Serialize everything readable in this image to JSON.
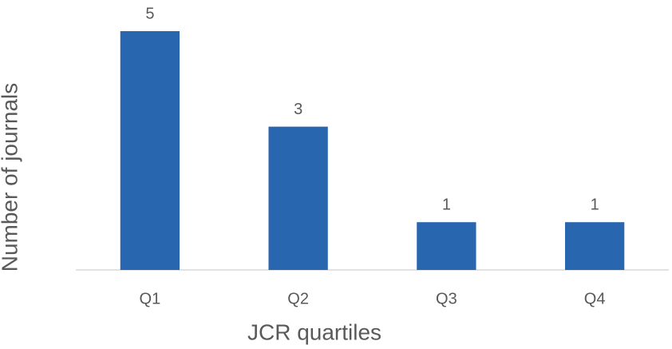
{
  "chart_data": {
    "type": "bar",
    "x_label": "JCR quartiles",
    "y_label": "Number of journals",
    "categories": [
      "Q1",
      "Q2",
      "Q3",
      "Q4"
    ],
    "values": [
      5,
      3,
      1,
      1
    ],
    "color": "#2866b0"
  }
}
